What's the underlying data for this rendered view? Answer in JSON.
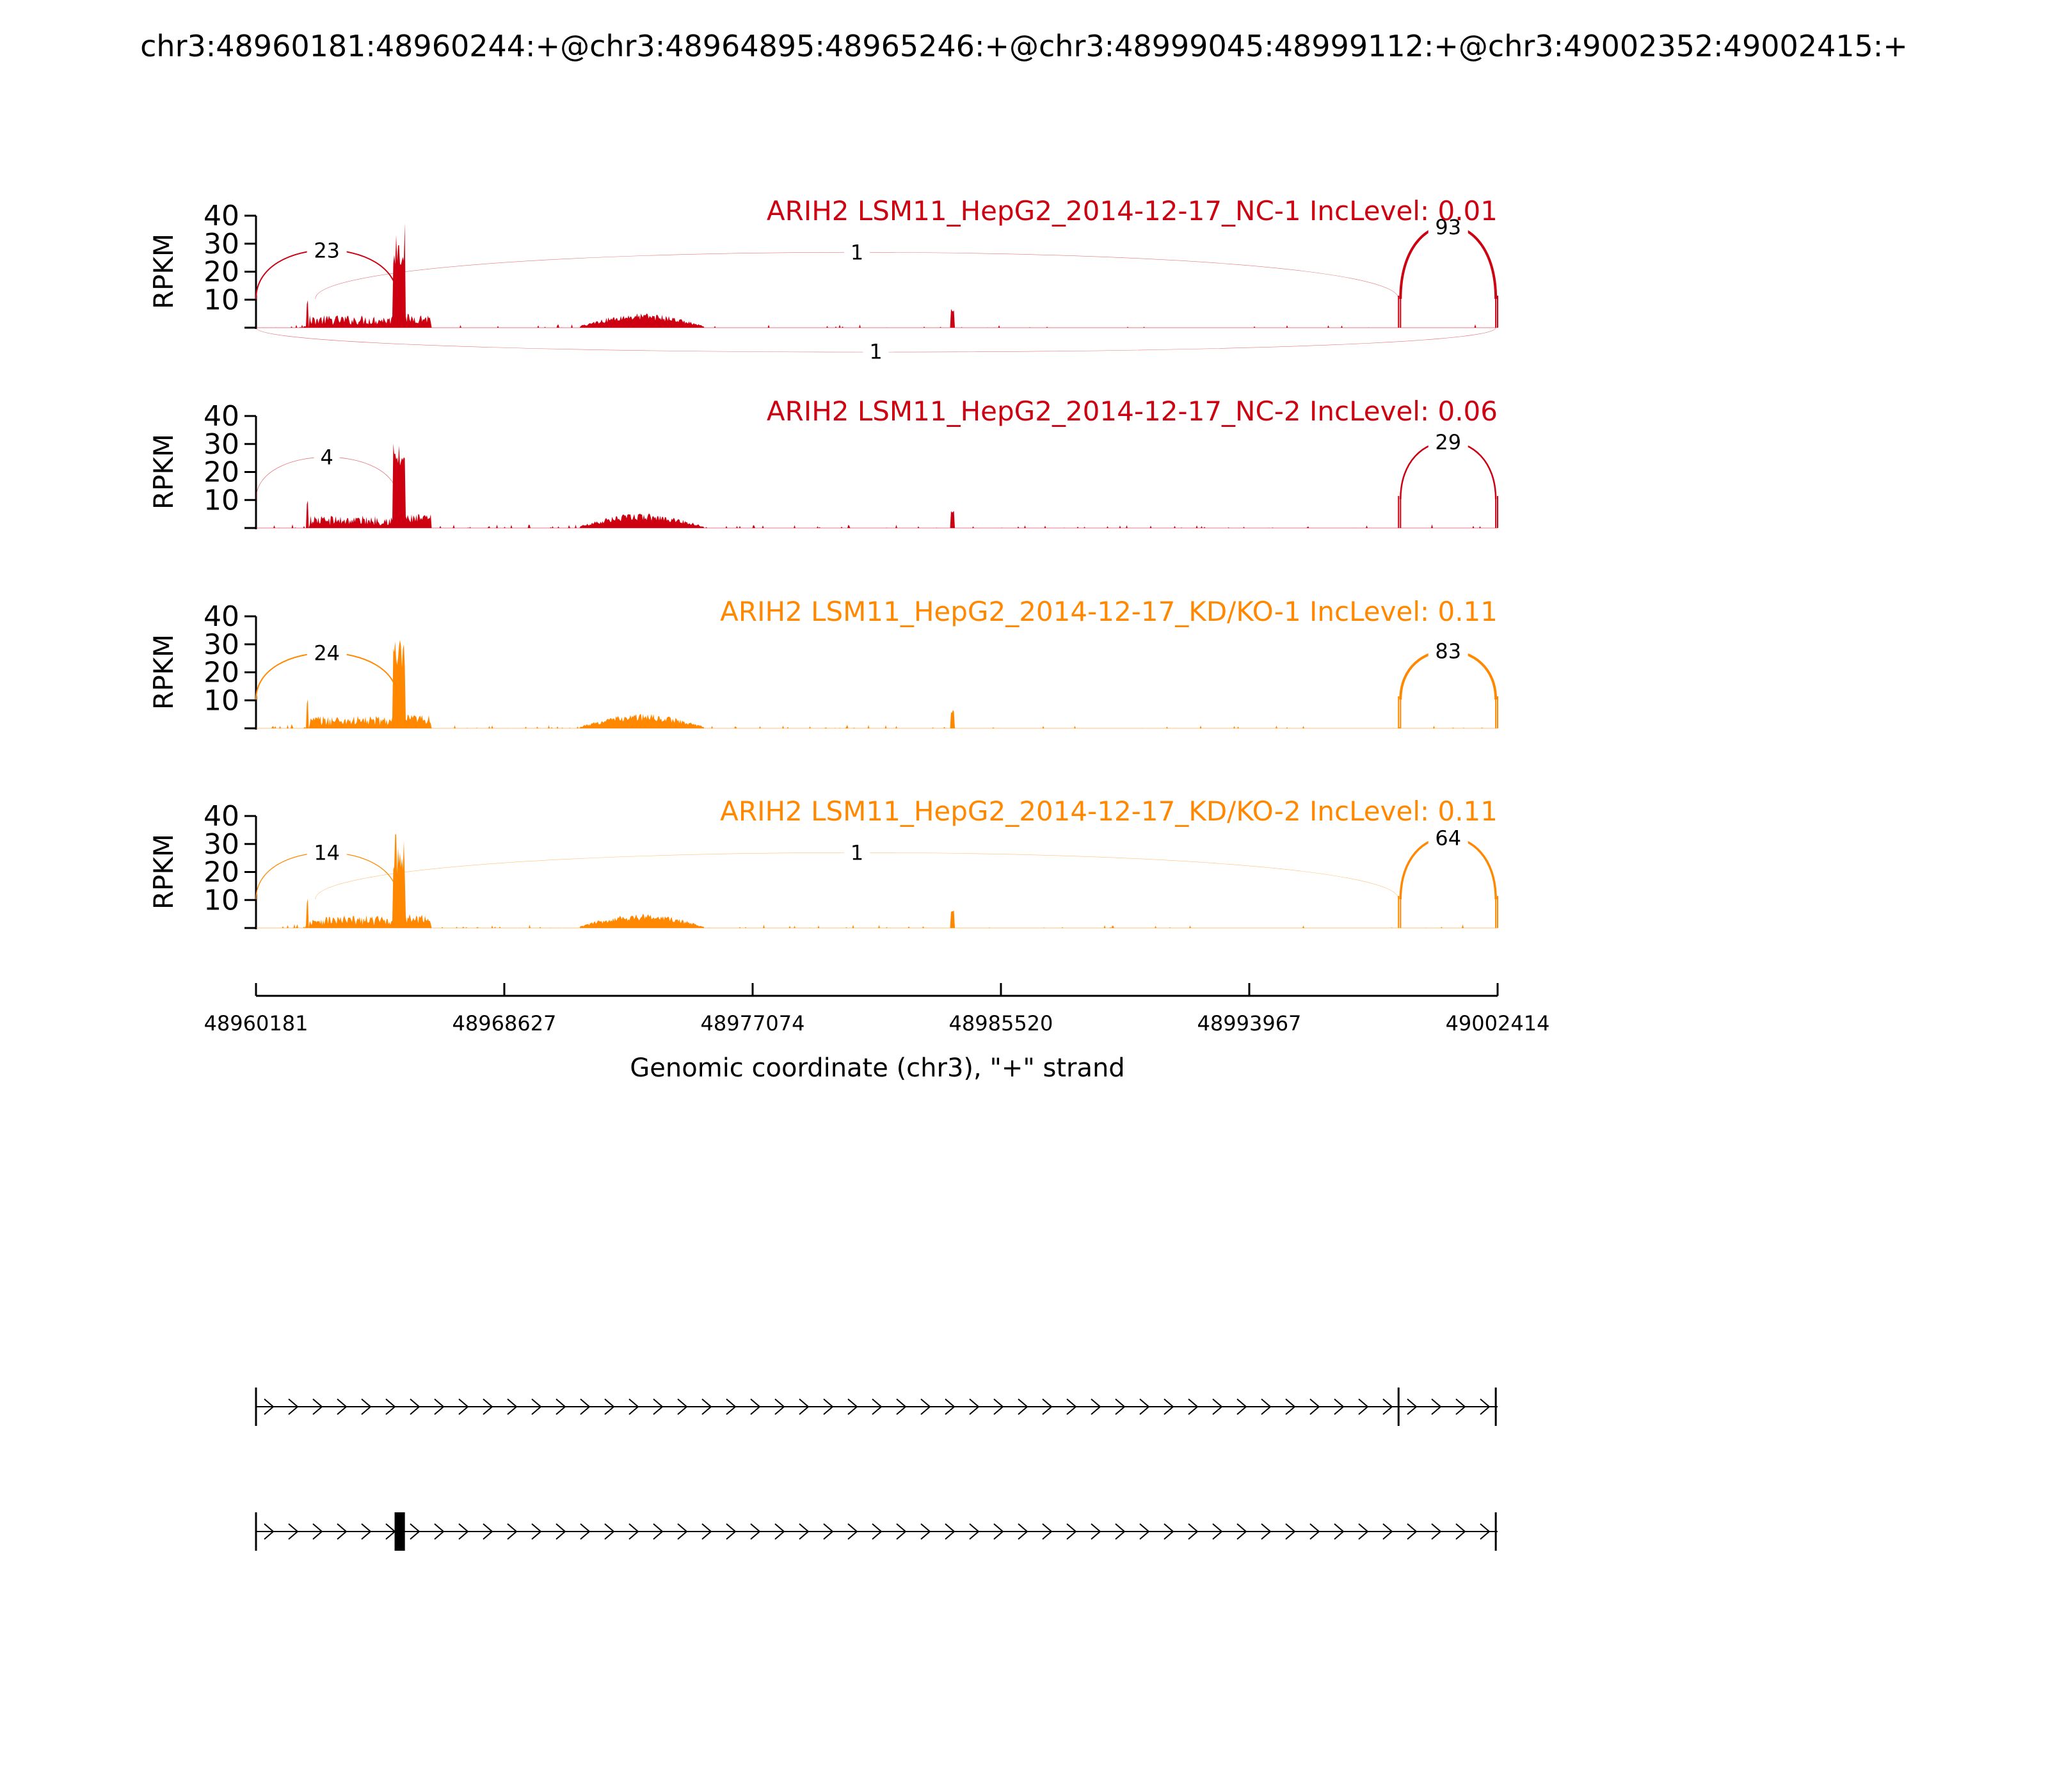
{
  "chart_data": {
    "type": "area",
    "title": "chr3:48960181:48960244:+@chr3:48964895:48965246:+@chr3:48999045:48999112:+@chr3:49002352:49002415:+",
    "ylabel": "RPKM",
    "xlabel": "Genomic coordinate (chr3), \"+\" strand",
    "xlim": [
      48960181,
      49002414
    ],
    "ylim": [
      0,
      40
    ],
    "yticks": [
      "10",
      "20",
      "30",
      "40"
    ],
    "xticks": [
      {
        "value": 48960181,
        "label": "48960181"
      },
      {
        "value": 48968627,
        "label": "48968627"
      },
      {
        "value": 48977074,
        "label": "48977074"
      },
      {
        "value": 48985520,
        "label": "48985520"
      },
      {
        "value": 48993967,
        "label": "48993967"
      },
      {
        "value": 49002414,
        "label": "49002414"
      }
    ],
    "panels": [
      {
        "label": "ARIH2 LSM11_HepG2_2014-12-17_NC-1 IncLevel: 0.01",
        "color": "#cc0011",
        "peak_rpkm": 38,
        "junctions": [
          {
            "count": "23",
            "from": 48960181,
            "to": 48965000,
            "side": "above",
            "height": 22,
            "weight": 2
          },
          {
            "count": "1",
            "from": 48962200,
            "to": 48999045,
            "side": "above",
            "height": 21,
            "weight": 0.6
          },
          {
            "count": "93",
            "from": 48999112,
            "to": 49002352,
            "side": "above",
            "height": 33,
            "weight": 4
          },
          {
            "count": "1",
            "from": 48960181,
            "to": 49002352,
            "side": "below",
            "height": 11,
            "weight": 0.6
          }
        ]
      },
      {
        "label": "ARIH2 LSM11_HepG2_2014-12-17_NC-2 IncLevel: 0.06",
        "color": "#cc0011",
        "peak_rpkm": 32,
        "junctions": [
          {
            "count": "4",
            "from": 48960181,
            "to": 48965000,
            "side": "above",
            "height": 19,
            "weight": 0.8
          },
          {
            "count": "29",
            "from": 48999112,
            "to": 49002352,
            "side": "above",
            "height": 26,
            "weight": 2.5
          }
        ]
      },
      {
        "label": "ARIH2 LSM11_HepG2_2014-12-17_KD/KO-1 IncLevel: 0.11",
        "color": "#ff8800",
        "peak_rpkm": 32,
        "junctions": [
          {
            "count": "24",
            "from": 48960181,
            "to": 48965000,
            "side": "above",
            "height": 21,
            "weight": 2
          },
          {
            "count": "83",
            "from": 48999112,
            "to": 49002352,
            "side": "above",
            "height": 22,
            "weight": 4
          }
        ]
      },
      {
        "label": "ARIH2 LSM11_HepG2_2014-12-17_KD/KO-2 IncLevel: 0.11",
        "color": "#ff8800",
        "peak_rpkm": 34,
        "junctions": [
          {
            "count": "14",
            "from": 48960181,
            "to": 48965000,
            "side": "above",
            "height": 21,
            "weight": 1.3
          },
          {
            "count": "1",
            "from": 48962200,
            "to": 48999045,
            "side": "above",
            "height": 21,
            "weight": 0.6
          },
          {
            "count": "64",
            "from": 48999112,
            "to": 49002352,
            "side": "above",
            "height": 28,
            "weight": 3.5
          }
        ]
      }
    ],
    "isoforms": [
      {
        "exons": [
          [
            48960181,
            48960244
          ],
          [
            48999045,
            48999112
          ],
          [
            49002352,
            49002415
          ]
        ]
      },
      {
        "exons": [
          [
            48960181,
            48960244
          ],
          [
            48964895,
            48965246
          ],
          [
            49002352,
            49002415
          ]
        ]
      }
    ]
  }
}
